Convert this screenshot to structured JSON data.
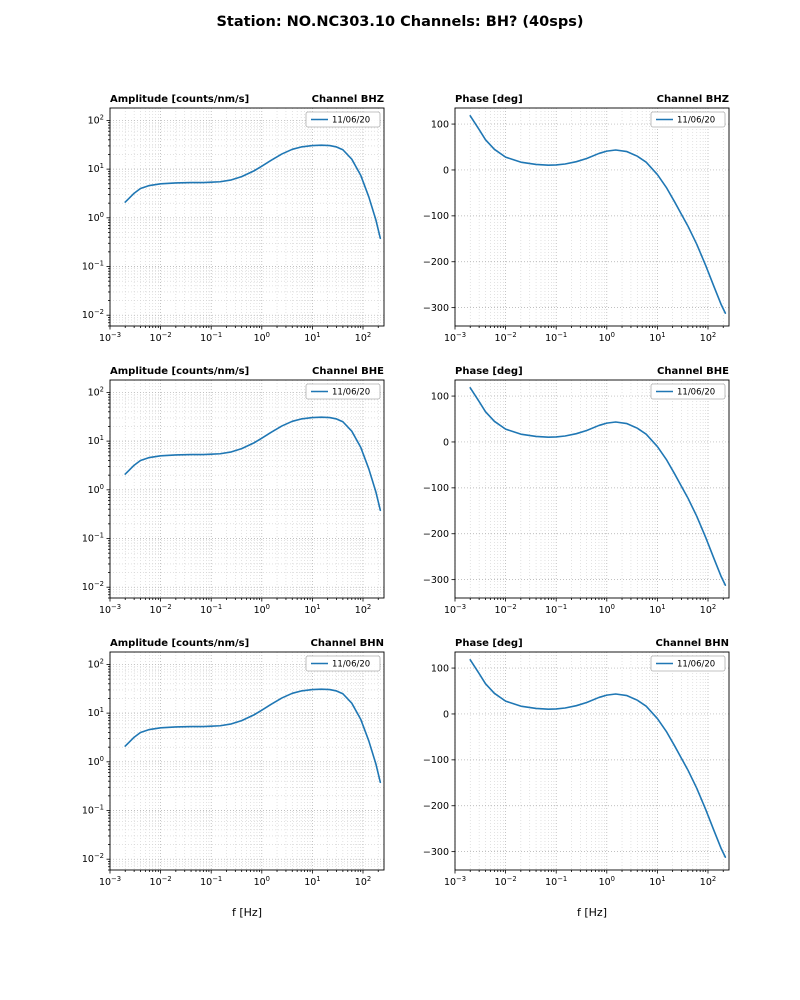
{
  "figure_title": "Station: NO.NC303.10 Channels: BH? (40sps)",
  "xlabel": "f [Hz]",
  "legend_label": "11/06/20",
  "line_color": "#1f77b4",
  "chart_data": [
    {
      "type": "line",
      "xscale": "log",
      "yscale": "log",
      "title_left": "Amplitude [counts/nm/s]",
      "title_right": "Channel BHZ",
      "xlim": [
        0.001,
        260
      ],
      "ylim": [
        0.006,
        180
      ],
      "xticks_exp": [
        -3,
        -2,
        -1,
        0,
        1,
        2
      ],
      "yticks_exp": [
        -2,
        -1,
        0,
        1,
        2
      ],
      "legend": "11/06/20",
      "x": [
        0.002,
        0.003,
        0.004,
        0.006,
        0.01,
        0.02,
        0.04,
        0.07,
        0.1,
        0.15,
        0.25,
        0.4,
        0.7,
        1,
        1.5,
        2.5,
        4,
        6,
        10,
        15,
        22,
        30,
        40,
        60,
        90,
        130,
        180,
        220
      ],
      "y": [
        2.1,
        3.2,
        4.0,
        4.6,
        5.0,
        5.2,
        5.3,
        5.3,
        5.4,
        5.5,
        6.0,
        7.0,
        9.2,
        11.5,
        15,
        20.5,
        25.5,
        28.5,
        30.5,
        31,
        30.5,
        28.5,
        25,
        16,
        7.5,
        2.7,
        0.9,
        0.38
      ]
    },
    {
      "type": "line",
      "xscale": "log",
      "yscale": "linear",
      "title_left": "Phase [deg]",
      "title_right": "Channel BHZ",
      "xlim": [
        0.001,
        260
      ],
      "ylim": [
        -340,
        135
      ],
      "xticks_exp": [
        -3,
        -2,
        -1,
        0,
        1,
        2
      ],
      "yticks": [
        100,
        0,
        -100,
        -200,
        -300
      ],
      "legend": "11/06/20",
      "x": [
        0.002,
        0.003,
        0.004,
        0.006,
        0.01,
        0.02,
        0.04,
        0.07,
        0.1,
        0.15,
        0.25,
        0.4,
        0.7,
        1,
        1.5,
        2.5,
        4,
        6,
        10,
        15,
        22,
        30,
        40,
        60,
        90,
        130,
        180,
        220
      ],
      "y": [
        118,
        88,
        66,
        45,
        28,
        17,
        12,
        10.5,
        11,
        13,
        18,
        25,
        36,
        41,
        43.5,
        40,
        30,
        17,
        -10,
        -38,
        -70,
        -97,
        -122,
        -162,
        -208,
        -253,
        -292,
        -312
      ]
    },
    {
      "type": "line",
      "xscale": "log",
      "yscale": "log",
      "title_left": "Amplitude [counts/nm/s]",
      "title_right": "Channel BHE",
      "xlim": [
        0.001,
        260
      ],
      "ylim": [
        0.006,
        180
      ],
      "xticks_exp": [
        -3,
        -2,
        -1,
        0,
        1,
        2
      ],
      "yticks_exp": [
        -2,
        -1,
        0,
        1,
        2
      ],
      "legend": "11/06/20",
      "x": [
        0.002,
        0.003,
        0.004,
        0.006,
        0.01,
        0.02,
        0.04,
        0.07,
        0.1,
        0.15,
        0.25,
        0.4,
        0.7,
        1,
        1.5,
        2.5,
        4,
        6,
        10,
        15,
        22,
        30,
        40,
        60,
        90,
        130,
        180,
        220
      ],
      "y": [
        2.1,
        3.2,
        4.0,
        4.6,
        5.0,
        5.2,
        5.3,
        5.3,
        5.4,
        5.5,
        6.0,
        7.0,
        9.2,
        11.5,
        15,
        20.5,
        25.5,
        28.5,
        30.5,
        31,
        30.5,
        28.5,
        25,
        16,
        7.5,
        2.7,
        0.9,
        0.38
      ]
    },
    {
      "type": "line",
      "xscale": "log",
      "yscale": "linear",
      "title_left": "Phase [deg]",
      "title_right": "Channel BHE",
      "xlim": [
        0.001,
        260
      ],
      "ylim": [
        -340,
        135
      ],
      "xticks_exp": [
        -3,
        -2,
        -1,
        0,
        1,
        2
      ],
      "yticks": [
        100,
        0,
        -100,
        -200,
        -300
      ],
      "legend": "11/06/20",
      "x": [
        0.002,
        0.003,
        0.004,
        0.006,
        0.01,
        0.02,
        0.04,
        0.07,
        0.1,
        0.15,
        0.25,
        0.4,
        0.7,
        1,
        1.5,
        2.5,
        4,
        6,
        10,
        15,
        22,
        30,
        40,
        60,
        90,
        130,
        180,
        220
      ],
      "y": [
        118,
        88,
        66,
        45,
        28,
        17,
        12,
        10.5,
        11,
        13,
        18,
        25,
        36,
        41,
        43.5,
        40,
        30,
        17,
        -10,
        -38,
        -70,
        -97,
        -122,
        -162,
        -208,
        -253,
        -292,
        -312
      ]
    },
    {
      "type": "line",
      "xscale": "log",
      "yscale": "log",
      "title_left": "Amplitude [counts/nm/s]",
      "title_right": "Channel BHN",
      "xlim": [
        0.001,
        260
      ],
      "ylim": [
        0.006,
        180
      ],
      "xticks_exp": [
        -3,
        -2,
        -1,
        0,
        1,
        2
      ],
      "yticks_exp": [
        -2,
        -1,
        0,
        1,
        2
      ],
      "legend": "11/06/20",
      "x": [
        0.002,
        0.003,
        0.004,
        0.006,
        0.01,
        0.02,
        0.04,
        0.07,
        0.1,
        0.15,
        0.25,
        0.4,
        0.7,
        1,
        1.5,
        2.5,
        4,
        6,
        10,
        15,
        22,
        30,
        40,
        60,
        90,
        130,
        180,
        220
      ],
      "y": [
        2.1,
        3.2,
        4.0,
        4.6,
        5.0,
        5.2,
        5.3,
        5.3,
        5.4,
        5.5,
        6.0,
        7.0,
        9.2,
        11.5,
        15,
        20.5,
        25.5,
        28.5,
        30.5,
        31,
        30.5,
        28.5,
        25,
        16,
        7.5,
        2.7,
        0.9,
        0.38
      ]
    },
    {
      "type": "line",
      "xscale": "log",
      "yscale": "linear",
      "title_left": "Phase [deg]",
      "title_right": "Channel BHN",
      "xlim": [
        0.001,
        260
      ],
      "ylim": [
        -340,
        135
      ],
      "xticks_exp": [
        -3,
        -2,
        -1,
        0,
        1,
        2
      ],
      "yticks": [
        100,
        0,
        -100,
        -200,
        -300
      ],
      "legend": "11/06/20",
      "x": [
        0.002,
        0.003,
        0.004,
        0.006,
        0.01,
        0.02,
        0.04,
        0.07,
        0.1,
        0.15,
        0.25,
        0.4,
        0.7,
        1,
        1.5,
        2.5,
        4,
        6,
        10,
        15,
        22,
        30,
        40,
        60,
        90,
        130,
        180,
        220
      ],
      "y": [
        118,
        88,
        66,
        45,
        28,
        17,
        12,
        10.5,
        11,
        13,
        18,
        25,
        36,
        41,
        43.5,
        40,
        30,
        17,
        -10,
        -38,
        -70,
        -97,
        -122,
        -162,
        -208,
        -253,
        -292,
        -312
      ]
    }
  ]
}
